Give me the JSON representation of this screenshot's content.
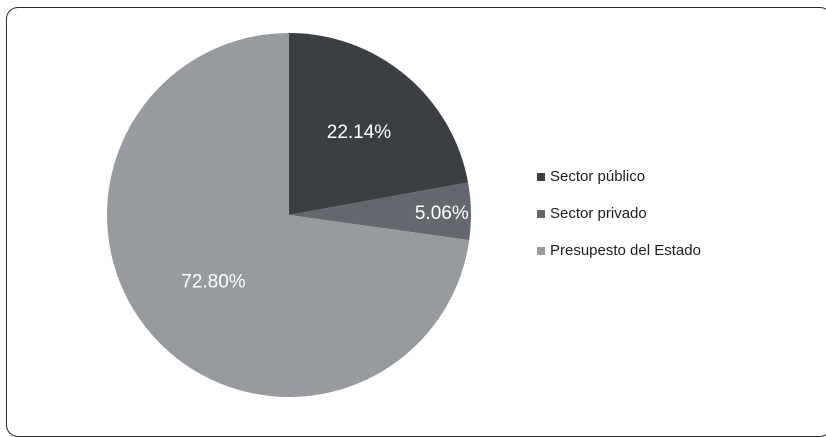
{
  "chart_data": {
    "type": "pie",
    "slices": [
      {
        "name": "Sector público",
        "value": 22.14,
        "label": "22.14%",
        "color": "#3b3e42"
      },
      {
        "name": "Sector privado",
        "value": 5.06,
        "label": "5.06%",
        "color": "#63686e"
      },
      {
        "name": "Presupesto del Estado",
        "value": 72.8,
        "label": "72.80%",
        "color": "#979b9f"
      }
    ],
    "start_angle_deg": 0,
    "direction": "clockwise",
    "legend_position": "right"
  }
}
